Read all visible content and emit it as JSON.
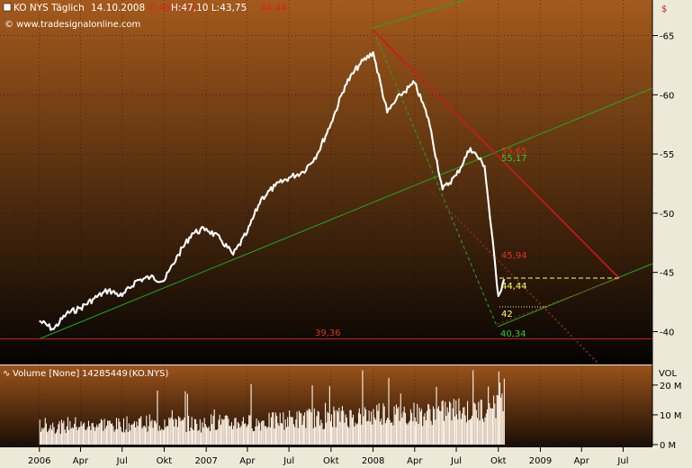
{
  "header": {
    "symbol": "KO NYS Täglich",
    "date": "14.10.2008",
    "change": "-0,45 (-1%)",
    "high_low": "H:47,10 L:43,75",
    "last": "44,44",
    "source": "© www.tradesignalonline.com"
  },
  "colors": {
    "bg_top": "#a45a1c",
    "bg_bottom": "#050302",
    "price": "#ffffff",
    "channel": "#1faa1f",
    "down": "#cc1a1a",
    "level_yellow": "#ffff66"
  },
  "chart_data": [
    {
      "type": "line",
      "currency": "$",
      "x_labels": [
        "2006",
        "Apr",
        "Jul",
        "Okt",
        "2007",
        "Apr",
        "Jul",
        "Okt",
        "2008",
        "Apr",
        "Jul",
        "Okt",
        "2009",
        "Apr",
        "Jul"
      ],
      "y_ticks": [
        40,
        45,
        50,
        55,
        60,
        65
      ],
      "ylim": [
        37.3,
        67.7
      ],
      "series": [
        {
          "x": [
            "2006-01-01",
            "2006-02-01",
            "2006-03-01",
            "2006-04-01",
            "2006-05-01",
            "2006-06-01",
            "2006-07-01",
            "2006-08-01",
            "2006-09-01",
            "2006-10-01",
            "2006-11-01",
            "2006-12-01",
            "2007-01-01",
            "2007-02-01",
            "2007-03-01",
            "2007-04-01",
            "2007-05-01",
            "2007-06-01",
            "2007-07-01",
            "2007-08-01",
            "2007-09-01",
            "2007-10-01",
            "2007-11-01",
            "2007-12-01",
            "2008-01-01",
            "2008-02-01",
            "2008-03-01",
            "2008-04-01",
            "2008-05-01",
            "2008-06-01",
            "2008-07-01",
            "2008-08-01",
            "2008-09-01",
            "2008-10-01",
            "2008-10-14"
          ],
          "y": [
            40.9,
            40.2,
            41.5,
            42.0,
            42.8,
            43.5,
            43.0,
            44.3,
            44.6,
            44.3,
            46.5,
            48.3,
            48.7,
            47.8,
            46.5,
            48.4,
            51.2,
            52.3,
            53.0,
            53.5,
            55.0,
            57.6,
            60.8,
            62.5,
            63.6,
            58.5,
            60.0,
            61.0,
            58.0,
            52.0,
            53.2,
            55.5,
            54.0,
            43.0,
            44.44
          ]
        }
      ],
      "annotations": [
        "39,36",
        "55,65",
        "55,17",
        "45,94",
        "44,44",
        "42",
        "40,34"
      ]
    },
    {
      "type": "bar",
      "title": "Volume [None]",
      "last_value": "14285449",
      "symbol_ref": "(KO.NYS)",
      "axis_label": "VOL",
      "y_ticks": [
        "20 M",
        "10 M",
        "0 M"
      ],
      "ylim": [
        0,
        26000000
      ],
      "x": [
        "2006-01",
        "2006-02",
        "2006-03",
        "2006-04",
        "2006-05",
        "2006-06",
        "2006-07",
        "2006-08",
        "2006-09",
        "2006-10",
        "2006-11",
        "2006-12",
        "2007-01",
        "2007-02",
        "2007-03",
        "2007-04",
        "2007-05",
        "2007-06",
        "2007-07",
        "2007-08",
        "2007-09",
        "2007-10",
        "2007-11",
        "2007-12",
        "2008-01",
        "2008-02",
        "2008-03",
        "2008-04",
        "2008-05",
        "2008-06",
        "2008-07",
        "2008-08",
        "2008-09",
        "2008-10"
      ],
      "values": [
        6500000,
        6000000,
        6800000,
        6200000,
        7000000,
        6500000,
        6800000,
        7300000,
        6700000,
        8500000,
        7000000,
        6800000,
        7500000,
        7200000,
        7600000,
        7300000,
        7800000,
        8200000,
        8500000,
        9000000,
        8300000,
        9500000,
        9300000,
        9800000,
        11000000,
        10000000,
        10500000,
        10200000,
        10800000,
        11500000,
        11200000,
        11800000,
        14500000,
        18000000
      ]
    }
  ]
}
